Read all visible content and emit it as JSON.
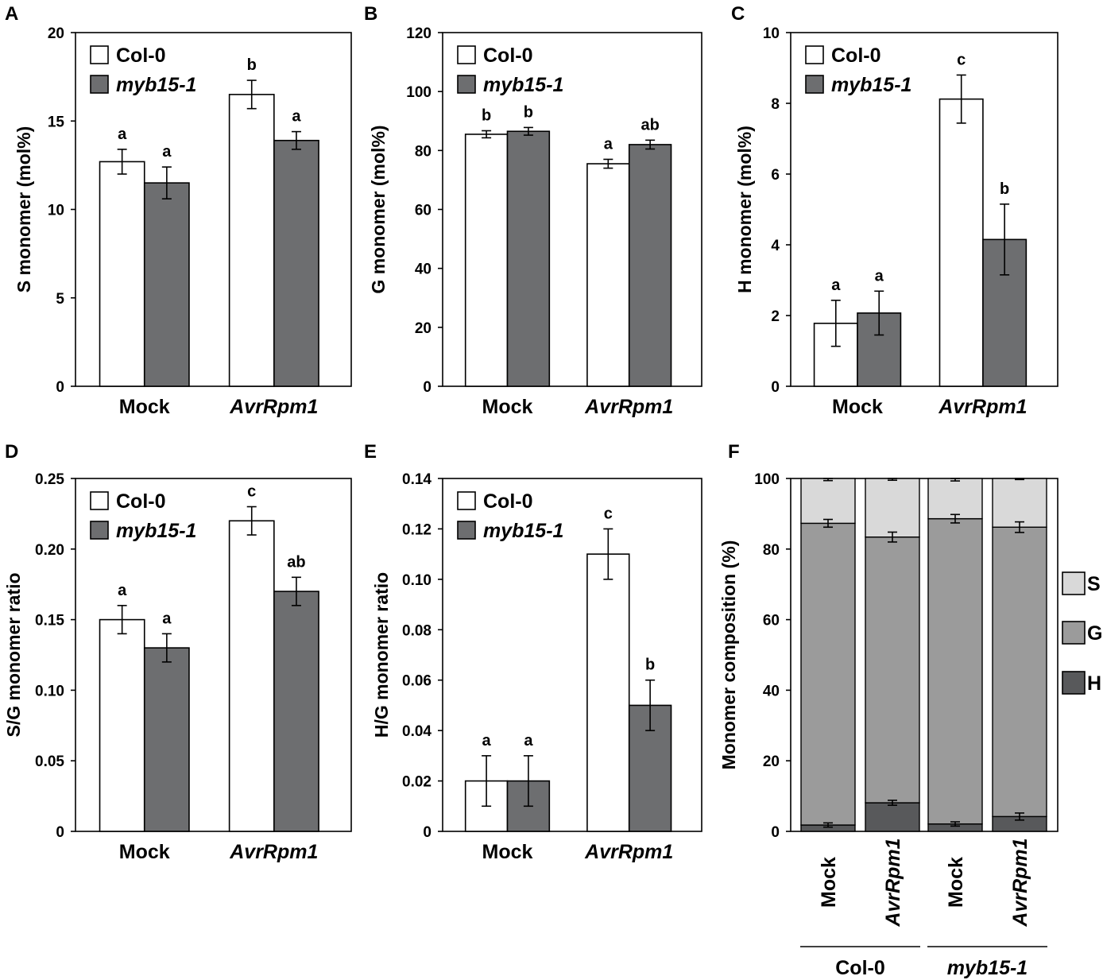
{
  "colors": {
    "col0": "#ffffff",
    "myb": "#6d6e70",
    "S": "#d9d9d9",
    "G": "#9b9b9b",
    "H": "#58595b",
    "axis": "#000000"
  },
  "chart_data": [
    {
      "id": "A",
      "panel_label": "A",
      "type": "bar",
      "ylabel": "S monomer (mol%)",
      "ylim": [
        0,
        20
      ],
      "yticks": [
        "0",
        "5",
        "10",
        "15",
        "20"
      ],
      "categories": [
        "Mock",
        "AvrRpm1"
      ],
      "category_italic": [
        false,
        true
      ],
      "legend": [
        "Col-0",
        "myb15-1"
      ],
      "series": [
        {
          "name": "Col-0",
          "values": [
            12.7,
            16.5
          ],
          "errors": [
            0.7,
            0.8
          ],
          "letters": [
            "a",
            "b"
          ]
        },
        {
          "name": "myb15-1",
          "values": [
            11.5,
            13.9
          ],
          "errors": [
            0.9,
            0.5
          ],
          "letters": [
            "a",
            "a"
          ]
        }
      ]
    },
    {
      "id": "B",
      "panel_label": "B",
      "type": "bar",
      "ylabel": "G monomer (mol%)",
      "ylim": [
        0,
        120
      ],
      "yticks": [
        "0",
        "20",
        "40",
        "60",
        "80",
        "100",
        "120"
      ],
      "categories": [
        "Mock",
        "AvrRpm1"
      ],
      "category_italic": [
        false,
        true
      ],
      "legend": [
        "Col-0",
        "myb15-1"
      ],
      "series": [
        {
          "name": "Col-0",
          "values": [
            85.5,
            75.5
          ],
          "errors": [
            1.2,
            1.5
          ],
          "letters": [
            "b",
            "a"
          ]
        },
        {
          "name": "myb15-1",
          "values": [
            86.5,
            82.0
          ],
          "errors": [
            1.3,
            1.5
          ],
          "letters": [
            "b",
            "ab"
          ]
        }
      ]
    },
    {
      "id": "C",
      "panel_label": "C",
      "type": "bar",
      "ylabel": "H monomer (mol%)",
      "ylim": [
        0,
        10
      ],
      "yticks": [
        "0",
        "2",
        "4",
        "6",
        "8",
        "10"
      ],
      "categories": [
        "Mock",
        "AvrRpm1"
      ],
      "category_italic": [
        false,
        true
      ],
      "legend": [
        "Col-0",
        "myb15-1"
      ],
      "series": [
        {
          "name": "Col-0",
          "values": [
            1.78,
            8.12
          ],
          "errors": [
            0.65,
            0.68
          ],
          "letters": [
            "a",
            "c"
          ]
        },
        {
          "name": "myb15-1",
          "values": [
            2.07,
            4.15
          ],
          "errors": [
            0.62,
            1.0
          ],
          "letters": [
            "a",
            "b"
          ]
        }
      ]
    },
    {
      "id": "D",
      "panel_label": "D",
      "type": "bar",
      "ylabel": "S/G monomer ratio",
      "ylim": [
        0,
        0.25
      ],
      "yticks": [
        "0",
        "0.05",
        "0.10",
        "0.15",
        "0.20",
        "0.25"
      ],
      "categories": [
        "Mock",
        "AvrRpm1"
      ],
      "category_italic": [
        false,
        true
      ],
      "legend": [
        "Col-0",
        "myb15-1"
      ],
      "series": [
        {
          "name": "Col-0",
          "values": [
            0.15,
            0.22
          ],
          "errors": [
            0.01,
            0.01
          ],
          "letters": [
            "a",
            "c"
          ]
        },
        {
          "name": "myb15-1",
          "values": [
            0.13,
            0.17
          ],
          "errors": [
            0.01,
            0.01
          ],
          "letters": [
            "a",
            "ab"
          ]
        }
      ]
    },
    {
      "id": "E",
      "panel_label": "E",
      "type": "bar",
      "ylabel": "H/G monomer ratio",
      "ylim": [
        0,
        0.14
      ],
      "yticks": [
        "0",
        "0.02",
        "0.04",
        "0.06",
        "0.08",
        "0.10",
        "0.12",
        "0.14"
      ],
      "categories": [
        "Mock",
        "AvrRpm1"
      ],
      "category_italic": [
        false,
        true
      ],
      "legend": [
        "Col-0",
        "myb15-1"
      ],
      "series": [
        {
          "name": "Col-0",
          "values": [
            0.02,
            0.11
          ],
          "errors": [
            0.01,
            0.01
          ],
          "letters": [
            "a",
            "c"
          ]
        },
        {
          "name": "myb15-1",
          "values": [
            0.02,
            0.05
          ],
          "errors": [
            0.01,
            0.01
          ],
          "letters": [
            "a",
            "b"
          ]
        }
      ]
    },
    {
      "id": "F",
      "panel_label": "F",
      "type": "stacked-bar",
      "ylabel": "Monomer composition (%)",
      "ylim": [
        0,
        100
      ],
      "yticks": [
        "0",
        "20",
        "40",
        "60",
        "80",
        "100"
      ],
      "categories": [
        "Mock",
        "AvrRpm1",
        "Mock",
        "AvrRpm1"
      ],
      "category_italic": [
        false,
        true,
        false,
        true
      ],
      "groups": [
        {
          "label": "Col-0",
          "italic": false,
          "members": [
            0,
            1
          ]
        },
        {
          "label": "myb15-1",
          "italic": true,
          "members": [
            2,
            3
          ]
        }
      ],
      "legend": [
        "S",
        "G",
        "H"
      ],
      "series": [
        {
          "name": "H",
          "values": [
            1.8,
            8.1,
            2.1,
            4.2
          ],
          "errors": [
            0.6,
            0.7,
            0.6,
            1.0
          ]
        },
        {
          "name": "G",
          "values": [
            85.5,
            75.3,
            86.5,
            82.0
          ],
          "errors": [
            1.1,
            1.4,
            1.2,
            1.5
          ]
        },
        {
          "name": "S",
          "values": [
            12.7,
            16.6,
            11.4,
            13.8
          ],
          "errors": [
            0.6,
            0.5,
            0.7,
            0.3
          ]
        }
      ]
    }
  ]
}
